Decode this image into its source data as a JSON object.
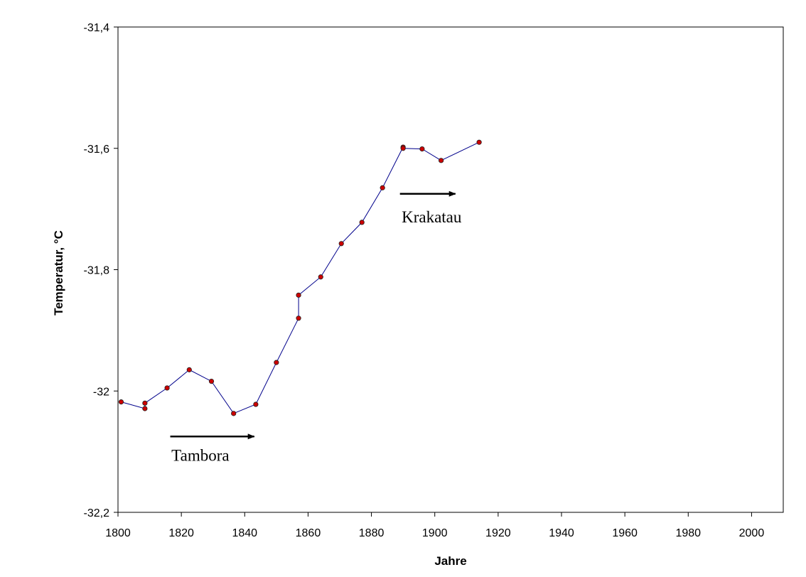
{
  "chart_data": {
    "type": "line",
    "title": "",
    "xlabel": "Jahre",
    "ylabel": "Temperatur, °C",
    "xlim": [
      1800,
      2010
    ],
    "ylim": [
      -32.2,
      -31.4
    ],
    "x_ticks": [
      1800,
      1820,
      1840,
      1860,
      1880,
      1900,
      1920,
      1940,
      1960,
      1980,
      2000
    ],
    "y_ticks": [
      -31.4,
      -31.6,
      -31.8,
      -32.0,
      -32.2
    ],
    "y_tick_labels": [
      "-31,4",
      "-31,6",
      "-31,8",
      "-32",
      "-32,2"
    ],
    "grid": false,
    "legend": "none",
    "series": [
      {
        "color": "#00008b",
        "marker_color": "#cc0000",
        "points": [
          [
            1801,
            -32.018
          ],
          [
            1808.5,
            -32.029
          ],
          [
            1808.5,
            -32.02
          ],
          [
            1815.5,
            -31.995
          ],
          [
            1822.5,
            -31.965
          ],
          [
            1829.5,
            -31.984
          ],
          [
            1836.5,
            -32.037
          ],
          [
            1843.5,
            -32.022
          ],
          [
            1850,
            -31.953
          ],
          [
            1857,
            -31.88
          ],
          [
            1857,
            -31.842
          ],
          [
            1864,
            -31.812
          ],
          [
            1870.5,
            -31.757
          ],
          [
            1877,
            -31.722
          ],
          [
            1883.5,
            -31.665
          ],
          [
            1890,
            -31.598
          ],
          [
            1890,
            -31.6
          ],
          [
            1896,
            -31.601
          ],
          [
            1902,
            -31.62
          ],
          [
            1914,
            -31.59
          ]
        ]
      }
    ],
    "annotations": [
      {
        "text": "Tambora",
        "arrow_from": [
          1816.5,
          -32.075
        ],
        "arrow_to": [
          1843,
          -32.075
        ],
        "text_at": [
          1826,
          -32.115
        ]
      },
      {
        "text": "Krakatau",
        "arrow_from": [
          1889,
          -31.675
        ],
        "arrow_to": [
          1906.5,
          -31.675
        ],
        "text_at": [
          1899,
          -31.722
        ]
      }
    ],
    "colors": {
      "line": "#00008b",
      "marker": "#cc0000",
      "axis": "#000000"
    }
  }
}
